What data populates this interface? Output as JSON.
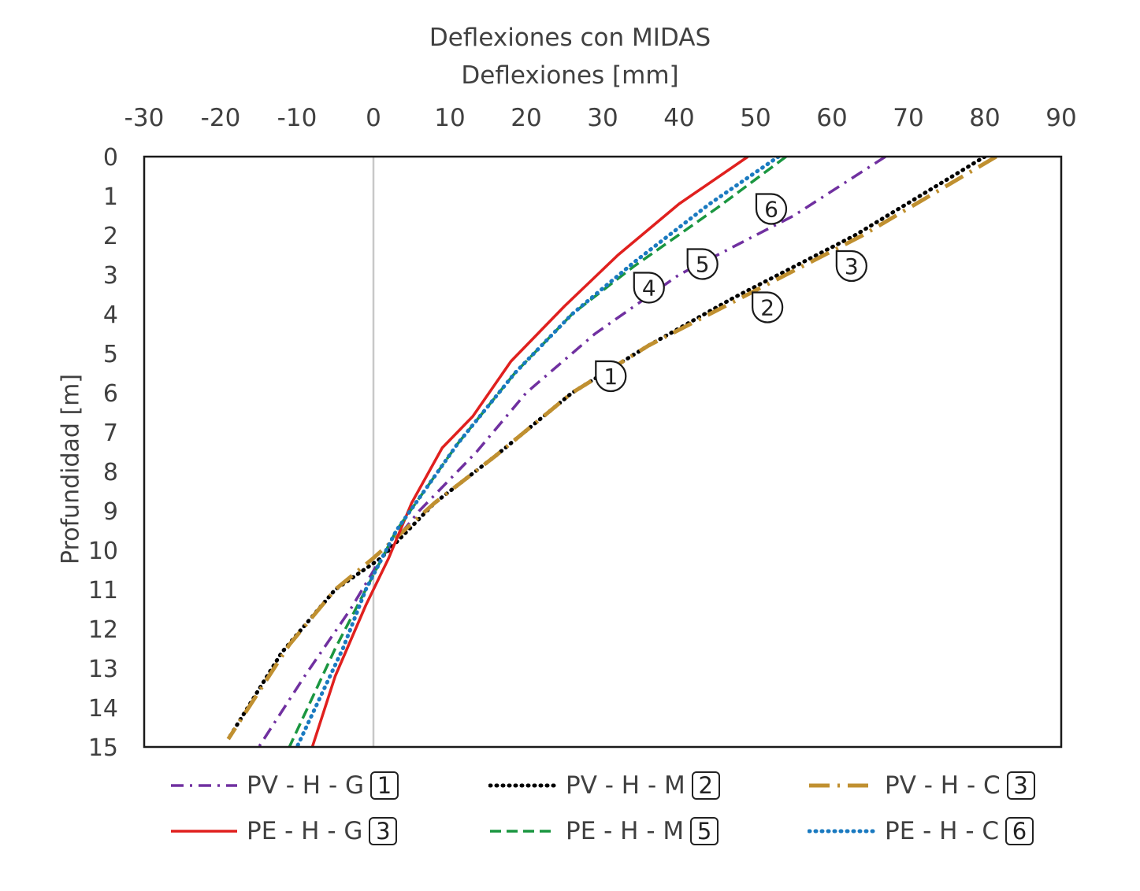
{
  "chart_data": {
    "type": "line",
    "title": "Deflexiones con MIDAS",
    "xlabel": "Deflexiones [mm]",
    "ylabel": "Profundidad [m]",
    "xlim": [
      -30,
      90
    ],
    "ylim": [
      0,
      15
    ],
    "y_inverted": true,
    "x_axis_position": "top",
    "x_ticks": [
      "-30",
      "-20",
      "-10",
      "0",
      "10",
      "20",
      "30",
      "40",
      "50",
      "60",
      "70",
      "80",
      "90"
    ],
    "y_ticks": [
      "0",
      "1",
      "2",
      "3",
      "4",
      "5",
      "6",
      "7",
      "8",
      "9",
      "10",
      "11",
      "12",
      "13",
      "14",
      "15"
    ],
    "grid": false,
    "reference_line": {
      "x": 0,
      "color": "#c8c8c8"
    },
    "legend_position": "bottom",
    "series": [
      {
        "name": "PV - H - G",
        "marker": "1",
        "color": "#7030a0",
        "dash": "dashdot",
        "points": [
          [
            67,
            0
          ],
          [
            55,
            1.5
          ],
          [
            40,
            3
          ],
          [
            29,
            4.5
          ],
          [
            20,
            6
          ],
          [
            13.5,
            7.5
          ],
          [
            6,
            9
          ],
          [
            1,
            10.2
          ],
          [
            -3,
            11.5
          ],
          [
            -9,
            13.2
          ],
          [
            -15,
            15
          ]
        ]
      },
      {
        "name": "PV - H - M",
        "marker": "2",
        "color": "#000000",
        "dash": "dotted",
        "points": [
          [
            80,
            0
          ],
          [
            63,
            2
          ],
          [
            47,
            3.6
          ],
          [
            36,
            4.8
          ],
          [
            26,
            6
          ],
          [
            16,
            7.6
          ],
          [
            8,
            8.8
          ],
          [
            1,
            10.2
          ],
          [
            -5,
            11
          ],
          [
            -12,
            12.6
          ],
          [
            -19,
            14.8
          ]
        ]
      },
      {
        "name": "PV - H - C",
        "marker": "3",
        "color": "#c09030",
        "dash": "longdashdot",
        "points": [
          [
            81.5,
            0
          ],
          [
            64,
            2
          ],
          [
            48,
            3.6
          ],
          [
            36,
            4.8
          ],
          [
            26,
            6
          ],
          [
            16,
            7.6
          ],
          [
            8,
            8.8
          ],
          [
            0,
            10.2
          ],
          [
            -5,
            11
          ],
          [
            -11,
            12.4
          ],
          [
            -19,
            14.8
          ]
        ]
      },
      {
        "name": "PE - H - G",
        "marker": "3",
        "color": "#e0201e",
        "dash": "solid",
        "points": [
          [
            49,
            0
          ],
          [
            40,
            1.2
          ],
          [
            32,
            2.5
          ],
          [
            25,
            3.8
          ],
          [
            18,
            5.2
          ],
          [
            13,
            6.6
          ],
          [
            9,
            7.4
          ],
          [
            5,
            8.8
          ],
          [
            2,
            10.2
          ],
          [
            -1,
            11.4
          ],
          [
            -5,
            13.2
          ],
          [
            -8,
            15
          ]
        ]
      },
      {
        "name": "PE - H - M",
        "marker": "5",
        "color": "#1a9640",
        "dash": "dashed",
        "points": [
          [
            54,
            0
          ],
          [
            45,
            1.3
          ],
          [
            34,
            2.8
          ],
          [
            26,
            4
          ],
          [
            18.5,
            5.5
          ],
          [
            11,
            7.3
          ],
          [
            3,
            9.5
          ],
          [
            -1,
            11
          ],
          [
            -5,
            12.5
          ],
          [
            -11,
            15
          ]
        ]
      },
      {
        "name": "PE - H - C",
        "marker": "6",
        "color": "#1a7ac0",
        "dash": "dotted",
        "points": [
          [
            53,
            0
          ],
          [
            44,
            1.2
          ],
          [
            34,
            2.7
          ],
          [
            26,
            4
          ],
          [
            18.5,
            5.5
          ],
          [
            11,
            7.3
          ],
          [
            3,
            9.5
          ],
          [
            -1,
            11
          ],
          [
            -4,
            12.5
          ],
          [
            -10,
            15
          ]
        ]
      }
    ],
    "annotations": [
      {
        "label": "1",
        "x": 29,
        "y": 5.3
      },
      {
        "label": "2",
        "x": 49.5,
        "y": 3.55
      },
      {
        "label": "3",
        "x": 60.5,
        "y": 2.5
      },
      {
        "label": "4",
        "x": 34,
        "y": 3.05
      },
      {
        "label": "5",
        "x": 41,
        "y": 2.45
      },
      {
        "label": "6",
        "x": 50,
        "y": 1.05
      }
    ]
  }
}
